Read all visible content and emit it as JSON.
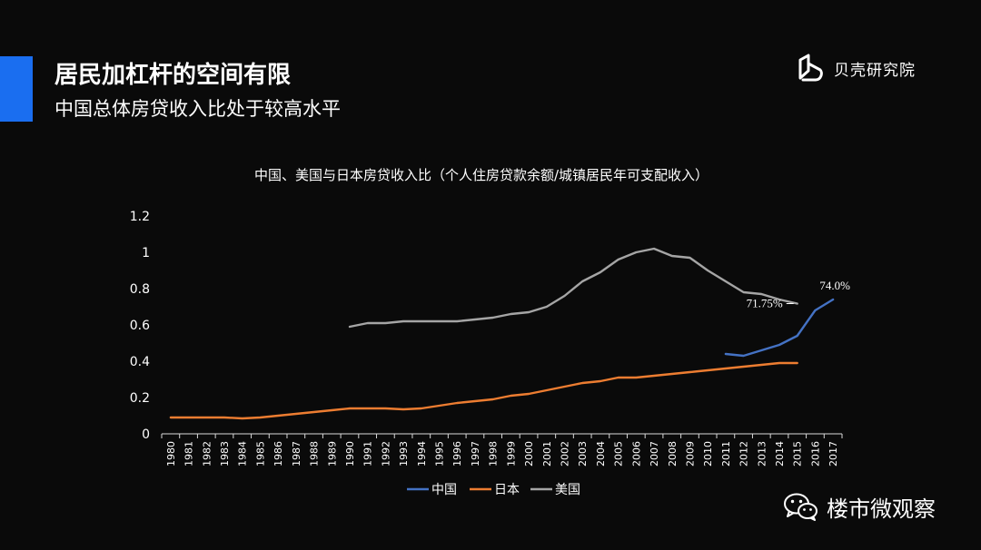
{
  "header": {
    "title": "居民加杠杆的空间有限",
    "subtitle": "中国总体房贷收入比处于较高水平",
    "brand_name": "贝壳研究院",
    "brand_icon": "beike-logo-icon"
  },
  "colors": {
    "accent": "#1a6ef0",
    "china": "#4472c4",
    "japan": "#ed7d31",
    "usa": "#a5a5a5"
  },
  "watermark": {
    "text": "楼市微观察",
    "icon": "wechat-icon"
  },
  "chart_data": {
    "type": "line",
    "title": "中国、美国与日本房贷收入比（个人住房贷款余额/城镇居民年可支配收入）",
    "xlabel": "",
    "ylabel": "",
    "categories": [
      "1980",
      "1981",
      "1982",
      "1983",
      "1984",
      "1985",
      "1986",
      "1987",
      "1988",
      "1989",
      "1990",
      "1991",
      "1992",
      "1993",
      "1994",
      "1995",
      "1996",
      "1997",
      "1998",
      "1999",
      "2000",
      "2001",
      "2002",
      "2003",
      "2004",
      "2005",
      "2006",
      "2007",
      "2008",
      "2009",
      "2010",
      "2011",
      "2012",
      "2013",
      "2014",
      "2015",
      "2016",
      "2017"
    ],
    "ylim": [
      0,
      1.2
    ],
    "yticks": [
      "0",
      "0.2",
      "0.4",
      "0.6",
      "0.8",
      "1",
      "1.2"
    ],
    "grid": false,
    "legend_position": "bottom",
    "series": [
      {
        "name": "中国",
        "color": "#4472c4",
        "values": [
          null,
          null,
          null,
          null,
          null,
          null,
          null,
          null,
          null,
          null,
          null,
          null,
          null,
          null,
          null,
          null,
          null,
          null,
          null,
          null,
          null,
          null,
          null,
          null,
          null,
          null,
          null,
          null,
          null,
          null,
          null,
          0.44,
          0.43,
          0.46,
          0.49,
          0.54,
          0.68,
          0.74
        ]
      },
      {
        "name": "日本",
        "color": "#ed7d31",
        "values": [
          0.09,
          0.09,
          0.09,
          0.09,
          0.085,
          0.09,
          0.1,
          0.11,
          0.12,
          0.13,
          0.14,
          0.14,
          0.14,
          0.135,
          0.14,
          0.155,
          0.17,
          0.18,
          0.19,
          0.21,
          0.22,
          0.24,
          0.26,
          0.28,
          0.29,
          0.31,
          0.31,
          0.32,
          0.33,
          0.34,
          0.35,
          0.36,
          0.37,
          0.38,
          0.39,
          0.39,
          null,
          null
        ]
      },
      {
        "name": "美国",
        "color": "#a5a5a5",
        "values": [
          null,
          null,
          null,
          null,
          null,
          null,
          null,
          null,
          null,
          null,
          0.59,
          0.61,
          0.61,
          0.62,
          0.62,
          0.62,
          0.62,
          0.63,
          0.64,
          0.66,
          0.67,
          0.7,
          0.76,
          0.84,
          0.89,
          0.96,
          1.0,
          1.02,
          0.98,
          0.97,
          0.9,
          0.84,
          0.78,
          0.77,
          0.74,
          0.7175,
          null,
          null
        ]
      }
    ],
    "annotations": [
      {
        "series": "中国",
        "category": "2017",
        "text": "74.0%"
      },
      {
        "series": "美国",
        "category": "2015",
        "text": "71.75%"
      }
    ]
  }
}
